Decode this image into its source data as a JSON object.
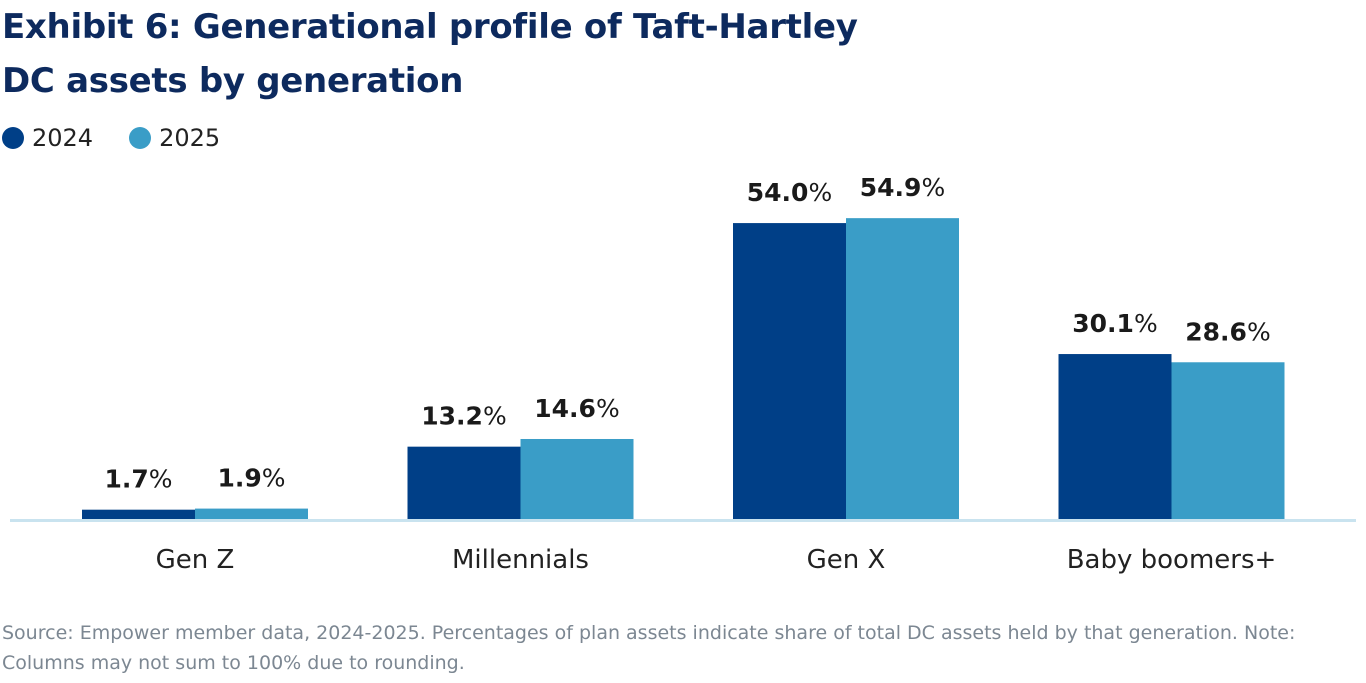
{
  "title": "Exhibit 6: Generational profile of Taft-Hartley DC assets by generation",
  "title_lines": [
    "Exhibit 6: Generational profile of Taft-Hartley",
    "DC assets by generation"
  ],
  "footnote": "Source: Empower member data, 2024-2025. Percentages of plan assets indicate share of total DC assets held by that generation. Note: Columns may not sum to 100% due to rounding.",
  "chart_data": {
    "type": "bar",
    "categories": [
      "Gen Z",
      "Millennials",
      "Gen X",
      "Baby boomers+"
    ],
    "series": [
      {
        "name": "2024",
        "color": "#003f87",
        "values": [
          1.7,
          13.2,
          54.0,
          30.1
        ],
        "labels": [
          "1.7",
          "13.2",
          "54.0",
          "30.1"
        ]
      },
      {
        "name": "2025",
        "color": "#3a9dc7",
        "values": [
          1.9,
          14.6,
          54.9,
          28.6
        ],
        "labels": [
          "1.9",
          "14.6",
          "54.9",
          "28.6"
        ]
      }
    ],
    "unit": "%",
    "ylim": [
      0,
      60
    ],
    "grid": false,
    "legend": "top-left",
    "axis_color": "#c9e3ef"
  }
}
